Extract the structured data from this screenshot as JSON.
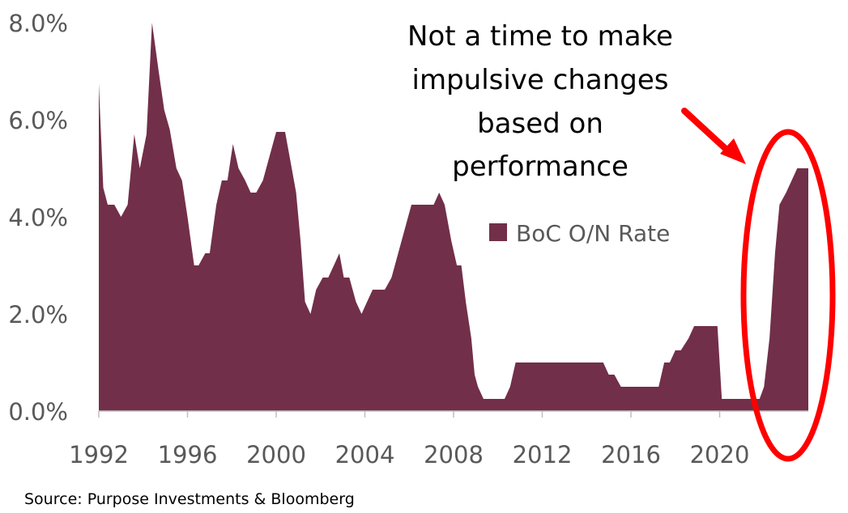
{
  "chart_data": {
    "type": "area",
    "series": [
      {
        "name": "BoC O/N Rate",
        "color": "#722F49",
        "points": [
          [
            1992.0,
            6.75
          ],
          [
            1992.2,
            4.6
          ],
          [
            1992.4,
            4.25
          ],
          [
            1992.7,
            4.25
          ],
          [
            1993.0,
            4.0
          ],
          [
            1993.3,
            4.25
          ],
          [
            1993.6,
            5.7
          ],
          [
            1993.85,
            5.0
          ],
          [
            1994.15,
            5.7
          ],
          [
            1994.4,
            8.0
          ],
          [
            1994.7,
            7.0
          ],
          [
            1994.95,
            6.2
          ],
          [
            1995.2,
            5.8
          ],
          [
            1995.5,
            5.0
          ],
          [
            1995.75,
            4.75
          ],
          [
            1996.0,
            4.0
          ],
          [
            1996.3,
            3.0
          ],
          [
            1996.5,
            3.0
          ],
          [
            1996.8,
            3.25
          ],
          [
            1997.0,
            3.25
          ],
          [
            1997.3,
            4.25
          ],
          [
            1997.55,
            4.75
          ],
          [
            1997.8,
            4.75
          ],
          [
            1998.05,
            5.5
          ],
          [
            1998.3,
            5.0
          ],
          [
            1998.6,
            4.75
          ],
          [
            1998.85,
            4.5
          ],
          [
            1999.1,
            4.5
          ],
          [
            1999.4,
            4.75
          ],
          [
            1999.7,
            5.25
          ],
          [
            2000.0,
            5.75
          ],
          [
            2000.4,
            5.75
          ],
          [
            2000.7,
            5.0
          ],
          [
            2000.9,
            4.5
          ],
          [
            2001.1,
            3.5
          ],
          [
            2001.3,
            2.25
          ],
          [
            2001.55,
            2.0
          ],
          [
            2001.8,
            2.5
          ],
          [
            2002.1,
            2.75
          ],
          [
            2002.35,
            2.75
          ],
          [
            2002.6,
            3.0
          ],
          [
            2002.85,
            3.25
          ],
          [
            2003.05,
            2.75
          ],
          [
            2003.3,
            2.75
          ],
          [
            2003.6,
            2.25
          ],
          [
            2003.85,
            2.0
          ],
          [
            2004.1,
            2.25
          ],
          [
            2004.35,
            2.5
          ],
          [
            2004.65,
            2.5
          ],
          [
            2004.9,
            2.5
          ],
          [
            2005.2,
            2.75
          ],
          [
            2005.5,
            3.25
          ],
          [
            2005.8,
            3.75
          ],
          [
            2006.1,
            4.25
          ],
          [
            2006.5,
            4.25
          ],
          [
            2006.8,
            4.25
          ],
          [
            2007.1,
            4.25
          ],
          [
            2007.35,
            4.5
          ],
          [
            2007.6,
            4.25
          ],
          [
            2007.9,
            3.5
          ],
          [
            2008.15,
            3.0
          ],
          [
            2008.35,
            3.0
          ],
          [
            2008.55,
            2.25
          ],
          [
            2008.8,
            1.5
          ],
          [
            2008.95,
            0.75
          ],
          [
            2009.1,
            0.5
          ],
          [
            2009.35,
            0.25
          ],
          [
            2009.7,
            0.25
          ],
          [
            2010.0,
            0.25
          ],
          [
            2010.3,
            0.25
          ],
          [
            2010.55,
            0.5
          ],
          [
            2010.8,
            1.0
          ],
          [
            2011.0,
            1.0
          ],
          [
            2012.0,
            1.0
          ],
          [
            2013.0,
            1.0
          ],
          [
            2014.0,
            1.0
          ],
          [
            2014.75,
            1.0
          ],
          [
            2015.0,
            0.75
          ],
          [
            2015.25,
            0.75
          ],
          [
            2015.55,
            0.5
          ],
          [
            2016.5,
            0.5
          ],
          [
            2017.25,
            0.5
          ],
          [
            2017.5,
            1.0
          ],
          [
            2017.75,
            1.0
          ],
          [
            2018.0,
            1.25
          ],
          [
            2018.25,
            1.25
          ],
          [
            2018.6,
            1.5
          ],
          [
            2018.85,
            1.75
          ],
          [
            2019.5,
            1.75
          ],
          [
            2019.9,
            1.75
          ],
          [
            2020.1,
            0.25
          ],
          [
            2021.5,
            0.25
          ],
          [
            2021.8,
            0.25
          ],
          [
            2022.0,
            0.5
          ],
          [
            2022.25,
            1.5
          ],
          [
            2022.5,
            3.25
          ],
          [
            2022.7,
            4.25
          ],
          [
            2023.0,
            4.5
          ],
          [
            2023.5,
            5.0
          ],
          [
            2024.0,
            5.0
          ]
        ]
      }
    ],
    "x_ticks": [
      "1992",
      "1996",
      "2000",
      "2004",
      "2008",
      "2012",
      "2016",
      "2020"
    ],
    "x_tick_values": [
      1992,
      1996,
      2000,
      2004,
      2008,
      2012,
      2016,
      2020
    ],
    "y_ticks": [
      "0.0%",
      "2.0%",
      "4.0%",
      "6.0%",
      "8.0%"
    ],
    "y_tick_values": [
      0,
      2,
      4,
      6,
      8
    ],
    "xlim": [
      1992,
      2024
    ],
    "ylim": [
      0,
      8
    ],
    "grid": false,
    "legend_placement": "right, inside plot area",
    "title": "",
    "xlabel": "",
    "ylabel": ""
  },
  "annotation": {
    "lines": [
      "Not a time to make",
      "impulsive changes",
      "based on",
      "performance"
    ],
    "highlight_color": "#FF0000",
    "arrow_color": "#FF0000"
  },
  "source_text": "Source: Purpose Investments & Bloomberg"
}
